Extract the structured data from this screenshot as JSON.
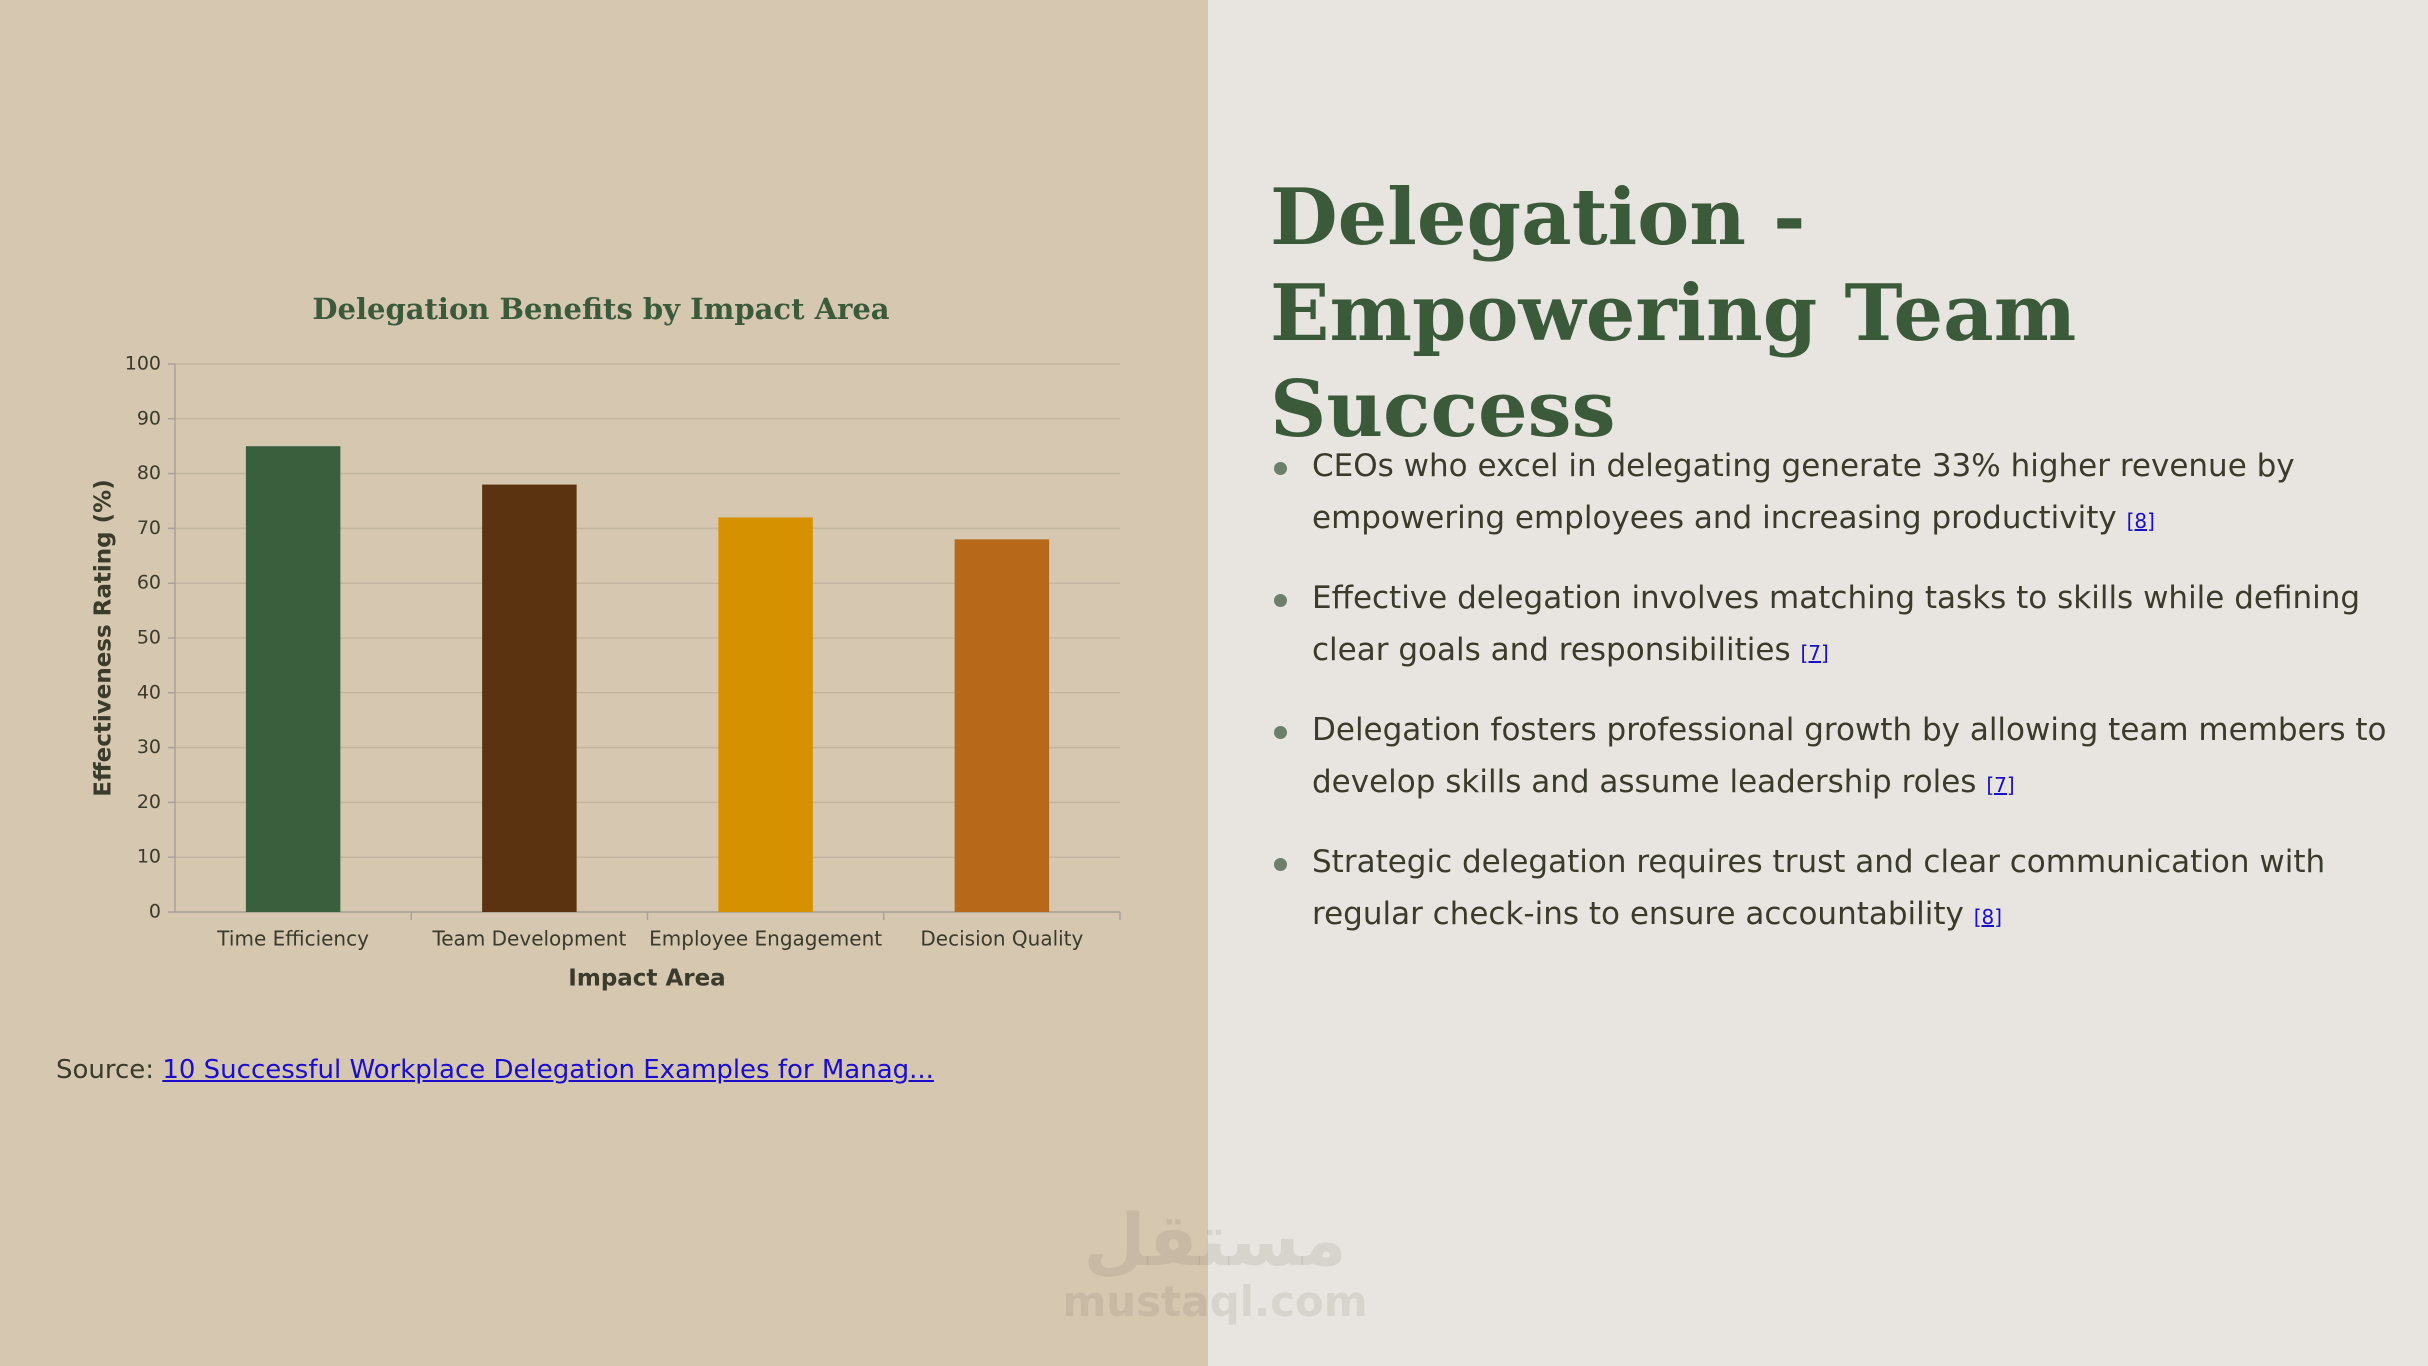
{
  "chart_data": {
    "type": "bar",
    "title": "Delegation Benefits by Impact Area",
    "x_label": "Impact Area",
    "y_label": "Effectiveness Rating (%)",
    "categories": [
      "Time Efficiency",
      "Team Development",
      "Employee Engagement",
      "Decision Quality"
    ],
    "values": [
      85,
      78,
      72,
      68
    ],
    "colors": [
      "#3a5f3c",
      "#5c3311",
      "#d69100",
      "#b76818"
    ],
    "ylim": [
      0,
      100
    ],
    "yticks": [
      0,
      10,
      20,
      30,
      40,
      50,
      60,
      70,
      80,
      90,
      100
    ],
    "grid": true
  },
  "source": {
    "label": "Source:",
    "link": "10 Successful Workplace Delegation Examples for Manag..."
  },
  "slide": {
    "title": "Delegation - Empowering Team Success",
    "bullets": [
      {
        "text": "CEOs who excel in delegating generate 33% higher revenue by empowering employees and increasing productivity",
        "ref": "[8]"
      },
      {
        "text": "Effective delegation involves matching tasks to skills while defining clear goals and responsibilities",
        "ref": "[7]"
      },
      {
        "text": "Delegation fosters professional growth by allowing team members to develop skills and assume leadership roles",
        "ref": "[7]"
      },
      {
        "text": "Strategic delegation requires trust and clear communication with regular check-ins to ensure accountability",
        "ref": "[8]"
      }
    ]
  },
  "watermark": {
    "arabic": "مستقل",
    "latin": "mustaql.com"
  }
}
